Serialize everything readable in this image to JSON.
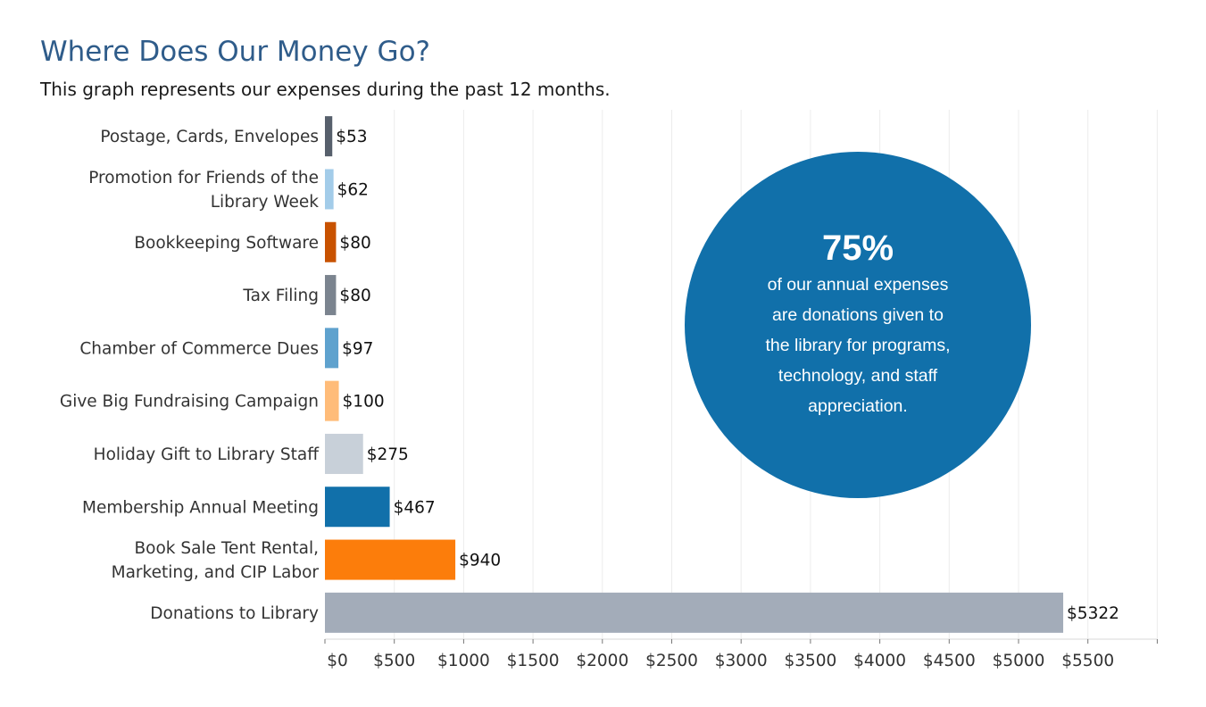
{
  "title": "Where Does Our Money Go?",
  "subtitle": "This graph represents our expenses during the past 12 months.",
  "callout": {
    "percent": "75%",
    "lines": [
      "of our annual expenses",
      "are donations given to",
      "the library for programs,",
      "technology, and staff",
      "appreciation."
    ],
    "color": "#1170aa"
  },
  "chart_data": {
    "type": "bar",
    "orientation": "horizontal",
    "title": "Where Does Our Money Go?",
    "xlabel": "",
    "ylabel": "",
    "xlim": [
      0,
      6000
    ],
    "grid": true,
    "categories": [
      [
        "Postage, Cards, Envelopes"
      ],
      [
        "Promotion for Friends of the",
        "Library Week"
      ],
      [
        "Bookkeeping Software"
      ],
      [
        "Tax Filing"
      ],
      [
        "Chamber of Commerce Dues"
      ],
      [
        "Give Big Fundraising Campaign"
      ],
      [
        "Holiday Gift to Library Staff"
      ],
      [
        "Membership Annual Meeting"
      ],
      [
        "Book Sale Tent Rental,",
        "Marketing, and CIP Labor"
      ],
      [
        "Donations to Library"
      ]
    ],
    "values": [
      53,
      62,
      80,
      80,
      97,
      100,
      275,
      467,
      940,
      5322
    ],
    "value_labels": [
      "$53",
      "$62",
      "$80",
      "$80",
      "$97",
      "$100",
      "$275",
      "$467",
      "$940",
      "$5322"
    ],
    "colors": [
      "#57606c",
      "#a3cce9",
      "#c85200",
      "#7b848f",
      "#5fa2ce",
      "#ffbc79",
      "#c8d0d9",
      "#1170aa",
      "#fc7d0b",
      "#a3acb9"
    ],
    "ticks": [
      0,
      500,
      1000,
      1500,
      2000,
      2500,
      3000,
      3500,
      4000,
      4500,
      5000,
      5500
    ],
    "tick_labels": [
      "$0",
      "$500",
      "$1000",
      "$1500",
      "$2000",
      "$2500",
      "$3000",
      "$3500",
      "$4000",
      "$4500",
      "$5000",
      "$5500"
    ]
  }
}
